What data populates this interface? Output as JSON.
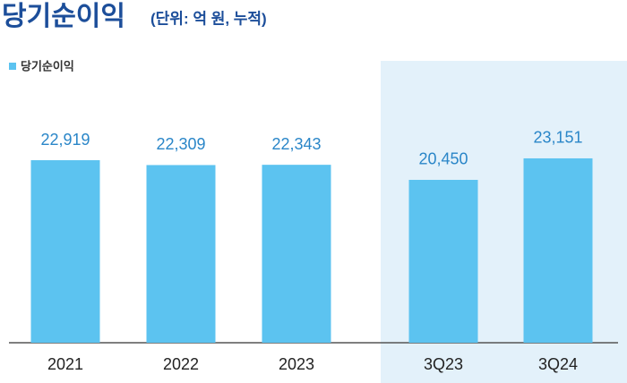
{
  "chart_data": {
    "type": "bar",
    "title": "당기순이익",
    "subtitle": "(단위: 억 원, 누적)",
    "legend": "당기순이익",
    "categories": [
      "2021",
      "2022",
      "2023",
      "3Q23",
      "3Q24"
    ],
    "values": [
      22919,
      22309,
      22343,
      20450,
      23151
    ],
    "value_labels": [
      "22,919",
      "22,309",
      "22,343",
      "20,450",
      "23,151"
    ],
    "color": "#5cc3f0"
  }
}
